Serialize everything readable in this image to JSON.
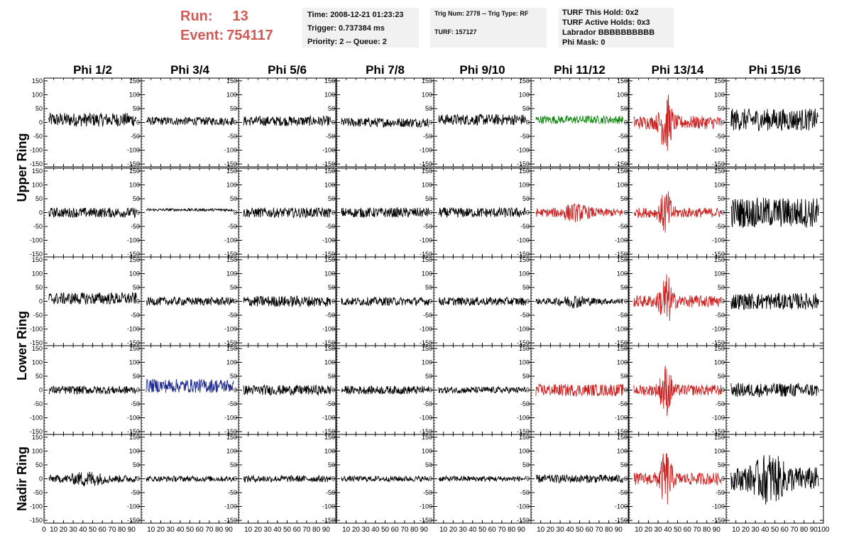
{
  "run": {
    "run_label": "Run:",
    "run_value": "13",
    "event_label": "Event:",
    "event_value": "754117"
  },
  "info_time": {
    "time": "Time: 2008-12-21 01:23:23",
    "trigger": "Trigger: 0.737384 ms",
    "priority": "Priority: 2 -- Queue: 2"
  },
  "info_trig": {
    "trig": "Trig Num: 2778 -- Trig Type: RF",
    "turf": "TURF: 157127"
  },
  "info_turf": {
    "hold": "TURF This Hold: 0x2",
    "active": "TURF Active Holds: 0x3",
    "labrador": "Labrador BBBBBBBBBB",
    "phimask": "Phi Mask: 0"
  },
  "colors": {
    "run_text": "#d05a57",
    "black": "#000000",
    "green": "#118811",
    "red": "#cc2222",
    "blue": "#1f2a8c",
    "box_bg": "#f1f1f1"
  },
  "chart_data": {
    "type": "line",
    "columns": [
      "Phi 1/2",
      "Phi 3/4",
      "Phi 5/6",
      "Phi 7/8",
      "Phi 9/10",
      "Phi 11/12",
      "Phi 13/14",
      "Phi 15/16"
    ],
    "ring_labels": [
      "Upper Ring",
      "Lower Ring",
      "Nadir Ring"
    ],
    "ring_rows": [
      [
        0,
        1
      ],
      [
        2,
        3
      ],
      [
        4
      ]
    ],
    "xlim": [
      0,
      100
    ],
    "ylim": [
      -160,
      160
    ],
    "x_ticks": [
      0,
      10,
      20,
      30,
      40,
      50,
      60,
      70,
      80,
      90
    ],
    "x_tick_last": "100",
    "y_ticks": [
      150,
      100,
      50,
      0,
      -50,
      -100,
      -150
    ],
    "rows": 5,
    "grid": false,
    "panel_colors": [
      [
        "black",
        "black",
        "black",
        "black",
        "black",
        "green",
        "red",
        "black"
      ],
      [
        "black",
        "black",
        "black",
        "black",
        "black",
        "red",
        "red",
        "black"
      ],
      [
        "black",
        "black",
        "black",
        "black",
        "black",
        "black",
        "red",
        "black"
      ],
      [
        "black",
        "blue",
        "black",
        "black",
        "black",
        "red",
        "red",
        "black"
      ],
      [
        "black",
        "black",
        "black",
        "black",
        "black",
        "black",
        "red",
        "black"
      ]
    ],
    "panel_amplitude": [
      [
        25,
        15,
        18,
        17,
        20,
        15,
        60,
        40
      ],
      [
        18,
        5,
        18,
        18,
        18,
        25,
        45,
        55
      ],
      [
        22,
        15,
        20,
        15,
        15,
        18,
        55,
        30
      ],
      [
        15,
        25,
        18,
        15,
        12,
        22,
        50,
        25
      ],
      [
        22,
        10,
        12,
        10,
        10,
        15,
        55,
        70
      ]
    ],
    "panel_offset": [
      [
        10,
        5,
        5,
        0,
        10,
        10,
        0,
        10
      ],
      [
        0,
        10,
        0,
        0,
        0,
        0,
        0,
        0
      ],
      [
        10,
        0,
        0,
        0,
        0,
        0,
        0,
        0
      ],
      [
        0,
        15,
        0,
        0,
        0,
        0,
        0,
        0
      ],
      [
        0,
        0,
        0,
        0,
        0,
        0,
        0,
        0
      ]
    ],
    "panel_pulse": [
      [
        0,
        0,
        0,
        0,
        0,
        0,
        1,
        0
      ],
      [
        0,
        0,
        0,
        0,
        0,
        1,
        1,
        0
      ],
      [
        0,
        0,
        0,
        0,
        0,
        1,
        1,
        0
      ],
      [
        0,
        0,
        0,
        0,
        0,
        0,
        1,
        0
      ],
      [
        1,
        0,
        0,
        0,
        0,
        0,
        1,
        1
      ]
    ]
  }
}
